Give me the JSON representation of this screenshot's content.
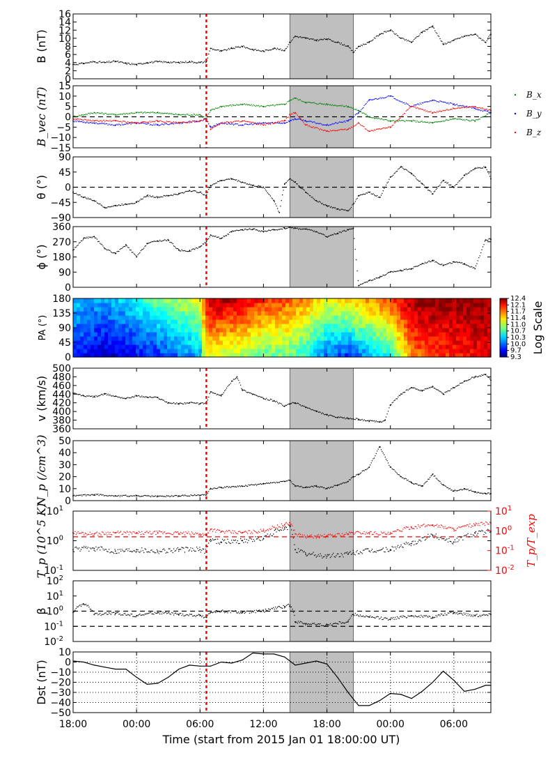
{
  "figure": {
    "xlabel": "Time (start from 2015 Jan 01 18:00:00 UT)",
    "x_tick_labels": [
      "18:00",
      "00:00",
      "06:00",
      "12:00",
      "18:00",
      "00:00",
      "06:00"
    ],
    "shock_time_hours": 12.6,
    "shaded_interval_hours": [
      20.5,
      26.5
    ],
    "shock_line_color": "#ff0000",
    "shade_color": "#bfbfbf"
  },
  "chart_data": [
    {
      "type": "scatter",
      "panel": "B",
      "ylabel": "B (nT)",
      "ylim": [
        0,
        16
      ],
      "yticks": [
        "0",
        "2",
        "4",
        "6",
        "8",
        "10",
        "12",
        "14",
        "16"
      ],
      "series": [
        {
          "color": "#000000",
          "x": [
            0,
            1,
            2,
            3,
            4,
            5,
            6,
            7,
            8,
            9,
            10,
            11,
            12,
            12.6,
            13,
            14,
            15,
            16,
            17,
            18,
            19,
            20,
            20.5,
            21,
            22,
            23,
            24,
            25,
            26,
            26.5,
            27,
            28,
            29,
            30,
            31,
            32,
            33,
            34,
            35,
            36,
            37,
            38,
            39,
            39.5
          ],
          "y": [
            3.5,
            3.8,
            4.2,
            4.0,
            4.3,
            3.8,
            3.5,
            4.0,
            4.2,
            4.1,
            4.0,
            4.2,
            4.0,
            4.2,
            7.5,
            6.8,
            7.5,
            8.0,
            7.2,
            6.8,
            7.5,
            7.0,
            9.0,
            10.5,
            10.0,
            9.5,
            9.8,
            9.0,
            8.0,
            6.5,
            8.0,
            9.0,
            11.0,
            12.0,
            10.0,
            9.0,
            11.5,
            13.0,
            8.5,
            9.5,
            10.5,
            11.0,
            9.0,
            11.0
          ]
        }
      ]
    },
    {
      "type": "scatter",
      "panel": "Bvec",
      "ylabel": "B_vec (nT)",
      "ylim": [
        -15,
        15
      ],
      "yticks": [
        "−15",
        "−10",
        "−5",
        "0",
        "5",
        "10",
        "15"
      ],
      "reference_lines": [
        0
      ],
      "series": [
        {
          "name": "B_x",
          "color": "#008000",
          "x": [
            0,
            2,
            4,
            6,
            8,
            10,
            12,
            12.6,
            13,
            14,
            16,
            18,
            20,
            20.5,
            21,
            22,
            24,
            26,
            27,
            28,
            30,
            32,
            34,
            36,
            38,
            39.5
          ],
          "y": [
            0,
            2,
            1,
            2,
            2,
            1,
            1,
            -1,
            3,
            5,
            6,
            5,
            6,
            8,
            9,
            7,
            6,
            5,
            3,
            0,
            -2,
            -2,
            -3,
            -1,
            -2,
            2
          ]
        },
        {
          "name": "B_y",
          "color": "#0000ff",
          "x": [
            0,
            2,
            4,
            6,
            8,
            10,
            12,
            12.6,
            13,
            14,
            16,
            18,
            20,
            20.5,
            21,
            22,
            24,
            26,
            27,
            28,
            30,
            32,
            34,
            36,
            38,
            39.5
          ],
          "y": [
            -2,
            -3,
            -4,
            -3,
            -4,
            -3,
            -2,
            -1,
            -5,
            -3,
            -4,
            -3,
            -3,
            -2,
            -1,
            -2,
            -4,
            -2,
            2,
            8,
            10,
            5,
            8,
            6,
            4,
            2
          ]
        },
        {
          "name": "B_z",
          "color": "#ff0000",
          "x": [
            0,
            2,
            4,
            6,
            8,
            10,
            12,
            12.6,
            13,
            14,
            16,
            18,
            20,
            20.5,
            21,
            22,
            24,
            26,
            27,
            28,
            30,
            32,
            34,
            36,
            38,
            39.5
          ],
          "y": [
            -1,
            -2,
            -2,
            -3,
            -2,
            -3,
            -2,
            -1,
            -6,
            -3,
            -2,
            -4,
            -2,
            1,
            2,
            -4,
            -7,
            -6,
            -3,
            -7,
            -5,
            5,
            2,
            4,
            5,
            3
          ]
        }
      ],
      "legend": {
        "placement": "right-outside",
        "entries": [
          "B_x",
          "B_y",
          "B_z"
        ]
      }
    },
    {
      "type": "scatter",
      "panel": "theta",
      "ylabel": "θ (°)",
      "ylim": [
        -90,
        90
      ],
      "yticks": [
        "−90",
        "−45",
        "0",
        "45",
        "90"
      ],
      "reference_lines": [
        0
      ],
      "series": [
        {
          "color": "#000000",
          "x": [
            0,
            1,
            2,
            3,
            4,
            5,
            6,
            7,
            8,
            9,
            10,
            11,
            12,
            12.6,
            13,
            14,
            15,
            16,
            17,
            18,
            19,
            19.5,
            20,
            20.5,
            21,
            22,
            23,
            24,
            25,
            26,
            26.5,
            27,
            28,
            29,
            30,
            31,
            32,
            33,
            34,
            35,
            36,
            37,
            38,
            39,
            39.5
          ],
          "y": [
            -15,
            -30,
            -40,
            -60,
            -55,
            -50,
            -45,
            -25,
            -30,
            -25,
            -20,
            -10,
            -15,
            -25,
            5,
            20,
            25,
            15,
            5,
            0,
            -40,
            -75,
            10,
            25,
            15,
            -15,
            -40,
            -55,
            -65,
            -70,
            -50,
            -25,
            -15,
            -30,
            30,
            60,
            40,
            10,
            -20,
            20,
            0,
            35,
            55,
            60,
            25
          ]
        }
      ]
    },
    {
      "type": "scatter",
      "panel": "phi",
      "ylabel": "ϕ (°)",
      "ylim": [
        0,
        360
      ],
      "yticks": [
        "0",
        "90",
        "180",
        "270",
        "360"
      ],
      "series": [
        {
          "color": "#000000",
          "x": [
            0,
            1,
            2,
            3,
            4,
            5,
            6,
            7,
            8,
            9,
            10,
            11,
            12,
            12.6,
            13,
            14,
            15,
            16,
            17,
            18,
            19,
            20,
            20.5,
            21,
            22,
            23,
            24,
            25,
            26,
            26.5,
            27,
            28,
            29,
            30,
            31,
            32,
            33,
            34,
            35,
            36,
            37,
            38,
            39,
            39.5
          ],
          "y": [
            220,
            290,
            300,
            230,
            200,
            250,
            180,
            260,
            275,
            280,
            220,
            215,
            240,
            270,
            310,
            290,
            330,
            340,
            345,
            330,
            340,
            350,
            355,
            350,
            345,
            330,
            300,
            320,
            340,
            350,
            10,
            40,
            60,
            90,
            100,
            110,
            140,
            160,
            130,
            150,
            140,
            110,
            280,
            285
          ]
        }
      ]
    },
    {
      "type": "heatmap",
      "panel": "PA",
      "ylabel": "PA (°)",
      "ylim": [
        0,
        180
      ],
      "yticks": [
        "0",
        "45",
        "90",
        "135",
        "180"
      ],
      "colorbar": {
        "label": "Log Scale",
        "range": [
          9.3,
          12.4
        ],
        "ticks": [
          "9.3",
          "9.7",
          "10.0",
          "10.3",
          "10.7",
          "11.0",
          "11.4",
          "11.7",
          "12.1",
          "12.4"
        ]
      },
      "columns_x": [
        0,
        2,
        4,
        6,
        8,
        10,
        12,
        12.6,
        14,
        16,
        18,
        20,
        22,
        24,
        26,
        28,
        30,
        32,
        34,
        36,
        38,
        39.5
      ],
      "value_low_pa": [
        9.8,
        9.6,
        9.5,
        9.7,
        9.8,
        10.0,
        10.2,
        11.3,
        11.0,
        10.9,
        10.7,
        10.8,
        10.5,
        10.0,
        9.8,
        10.2,
        10.5,
        11.6,
        11.8,
        11.9,
        12.0,
        12.1
      ],
      "value_high_pa": [
        10.3,
        10.2,
        10.3,
        10.5,
        10.8,
        11.0,
        11.2,
        12.1,
        12.3,
        12.2,
        11.9,
        11.8,
        11.6,
        11.2,
        11.4,
        11.6,
        11.8,
        12.3,
        12.4,
        12.3,
        12.4,
        12.3
      ]
    },
    {
      "type": "scatter",
      "panel": "v",
      "ylabel": "v (km/s)",
      "ylim": [
        360,
        500
      ],
      "yticks": [
        "360",
        "380",
        "400",
        "420",
        "440",
        "460",
        "480",
        "500"
      ],
      "series": [
        {
          "color": "#000000",
          "x": [
            0,
            1,
            2,
            3,
            4,
            5,
            6,
            7,
            8,
            9,
            10,
            11,
            12,
            12.6,
            13,
            14,
            15,
            15.5,
            16,
            17,
            18,
            19,
            20,
            20.5,
            21,
            22,
            23,
            24,
            25,
            26,
            27,
            28,
            29,
            29.5,
            30,
            31,
            32,
            33,
            34,
            35,
            36,
            37,
            38,
            39,
            39.5
          ],
          "y": [
            442,
            436,
            434,
            440,
            435,
            430,
            436,
            433,
            432,
            420,
            418,
            420,
            418,
            420,
            445,
            436,
            470,
            480,
            450,
            440,
            430,
            425,
            412,
            418,
            420,
            410,
            400,
            392,
            386,
            384,
            382,
            378,
            376,
            380,
            415,
            440,
            455,
            448,
            458,
            440,
            455,
            470,
            480,
            485,
            472
          ]
        }
      ]
    },
    {
      "type": "scatter",
      "panel": "Np",
      "ylabel": "N_p (/cm^3)",
      "ylim": [
        0,
        50
      ],
      "yticks": [
        "0",
        "10",
        "20",
        "30",
        "40",
        "50"
      ],
      "series": [
        {
          "color": "#000000",
          "x": [
            0,
            2,
            4,
            6,
            8,
            10,
            12,
            12.6,
            13,
            14,
            16,
            18,
            20,
            20.5,
            21,
            22,
            23,
            24,
            25,
            26,
            26.5,
            27,
            28,
            29,
            30,
            31,
            32,
            33,
            34,
            35,
            36,
            37,
            38,
            39,
            39.5
          ],
          "y": [
            4,
            5,
            4,
            4,
            3.5,
            4,
            4.5,
            5,
            10,
            11,
            12,
            14,
            16,
            17,
            12,
            11,
            12,
            10,
            13,
            16,
            20,
            22,
            28,
            45,
            28,
            20,
            15,
            12,
            22,
            13,
            8,
            10,
            7,
            6,
            6
          ]
        }
      ]
    },
    {
      "type": "scatter",
      "panel": "Tp",
      "ylabel": "T_p (10^5 K)",
      "ylabel_right": "T_p/T_exp",
      "ylim_log": [
        -1,
        1
      ],
      "ylim_right_log": [
        -2,
        1
      ],
      "yticks": [
        "10^-1",
        "10^0",
        "10^1"
      ],
      "yticks_right": [
        "10^-2",
        "10^-1",
        "10^0",
        "10^1"
      ],
      "reference_lines_right": [
        0.5
      ],
      "series": [
        {
          "name": "T_p",
          "color": "#000000",
          "x": [
            0,
            2,
            4,
            6,
            8,
            10,
            12,
            12.6,
            13,
            14,
            16,
            18,
            20,
            20.5,
            21,
            22,
            24,
            26,
            26.5,
            28,
            30,
            32,
            34,
            36,
            38,
            39.5
          ],
          "y": [
            0.5,
            0.55,
            0.45,
            0.5,
            0.45,
            0.5,
            0.5,
            0.45,
            1.1,
            0.9,
            1.0,
            1.2,
            2.5,
            3.0,
            0.5,
            0.35,
            0.3,
            0.35,
            0.4,
            0.45,
            0.5,
            0.8,
            1.5,
            0.9,
            1.8,
            2.0
          ]
        },
        {
          "name": "T_p/T_exp",
          "color": "#ff0000",
          "axis": "right",
          "x": [
            0,
            2,
            4,
            6,
            8,
            10,
            12,
            12.6,
            13,
            14,
            16,
            18,
            20,
            20.5,
            21,
            22,
            24,
            26,
            26.5,
            28,
            30,
            32,
            34,
            36,
            38,
            39.5
          ],
          "y": [
            0.8,
            0.7,
            0.8,
            0.75,
            0.8,
            0.75,
            0.7,
            0.6,
            1.2,
            0.9,
            0.8,
            1.0,
            2.0,
            2.5,
            0.7,
            0.5,
            0.55,
            0.7,
            0.8,
            0.8,
            0.7,
            1.5,
            2.0,
            1.2,
            2.0,
            2.5
          ]
        }
      ]
    },
    {
      "type": "scatter",
      "panel": "beta",
      "ylabel": "β",
      "ylim_log": [
        -2,
        2
      ],
      "yticks": [
        "10^-2",
        "10^-1",
        "10^0",
        "10^1",
        "10^2"
      ],
      "reference_lines": [
        1,
        0.1
      ],
      "series": [
        {
          "color": "#000000",
          "x": [
            0,
            1,
            2,
            4,
            6,
            8,
            10,
            12,
            12.6,
            13,
            14,
            16,
            18,
            20,
            20.5,
            21,
            22,
            24,
            26,
            26.5,
            28,
            30,
            32,
            34,
            36,
            38,
            39.5
          ],
          "y": [
            0.8,
            3.0,
            0.6,
            0.7,
            0.5,
            0.8,
            0.6,
            0.5,
            0.4,
            0.8,
            1.0,
            0.8,
            1.0,
            2.0,
            2.5,
            0.2,
            0.15,
            0.12,
            0.2,
            0.6,
            0.4,
            0.3,
            0.5,
            0.4,
            0.8,
            0.5,
            0.6
          ]
        }
      ]
    },
    {
      "type": "line",
      "panel": "Dst",
      "ylabel": "Dst (nT)",
      "ylim": [
        -50,
        10
      ],
      "yticks": [
        "−50",
        "−40",
        "−30",
        "−20",
        "−10",
        "0",
        "10"
      ],
      "grid": true,
      "series": [
        {
          "color": "#000000",
          "x": [
            0,
            1,
            2,
            3,
            4,
            5,
            6,
            7,
            8,
            9,
            10,
            11,
            12,
            13,
            14,
            15,
            16,
            17,
            18,
            19,
            20,
            21,
            22,
            23,
            24,
            25,
            26,
            27,
            28,
            29,
            30,
            31,
            32,
            33,
            34,
            35,
            36,
            37,
            38,
            39,
            39.5
          ],
          "y": [
            1,
            0,
            -3,
            -5,
            -7,
            -7,
            -15,
            -22,
            -21,
            -15,
            -7,
            -3,
            -4,
            -4,
            0,
            -1,
            2,
            9,
            8,
            8,
            5,
            -3,
            -1,
            1,
            -2,
            -15,
            -30,
            -43,
            -43,
            -38,
            -31,
            -32,
            -36,
            -29,
            -20,
            -9,
            -18,
            -29,
            -27,
            -23,
            -23
          ]
        }
      ]
    }
  ]
}
